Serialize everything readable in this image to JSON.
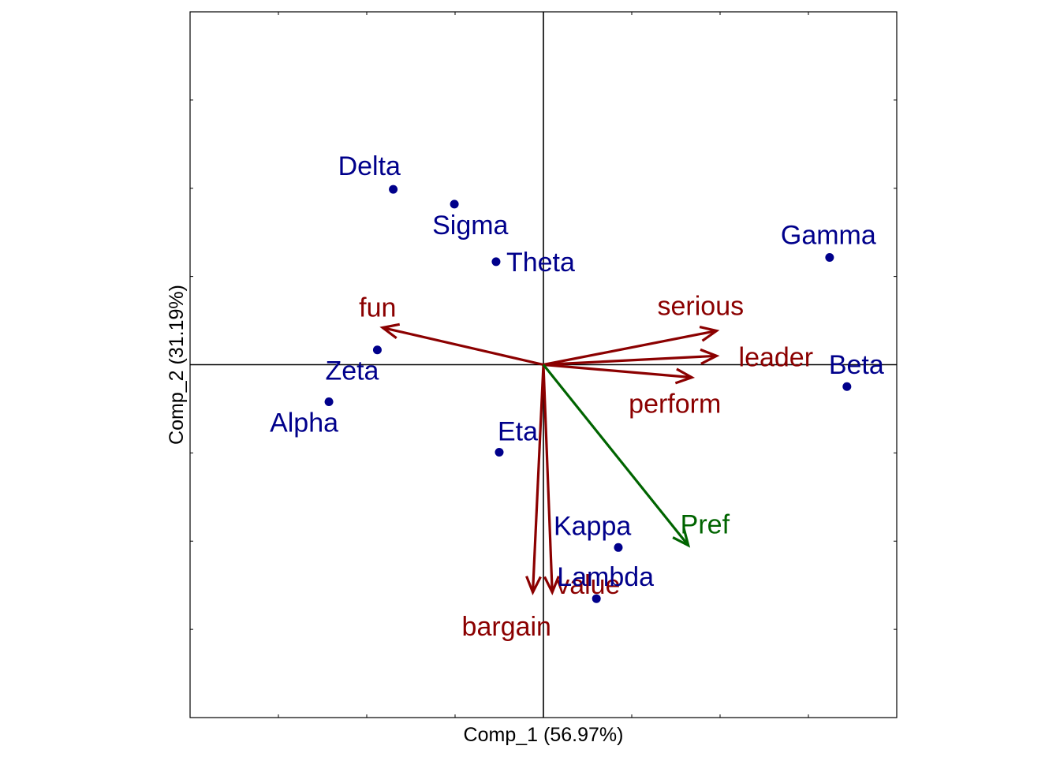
{
  "chart_data": {
    "type": "scatter",
    "subtype": "biplot",
    "xlabel": "Comp_1 (56.97%)",
    "ylabel": "Comp_2 (31.19%)",
    "xlim": [
      -1.0,
      1.0
    ],
    "ylim": [
      -1.0,
      1.0
    ],
    "grid": false,
    "colors": {
      "observations": "#00008B",
      "variables": "#8B0000",
      "supplementary": "#006400",
      "axes": "#000000"
    },
    "observations": [
      {
        "name": "Delta",
        "x": -0.425,
        "y": 0.497
      },
      {
        "name": "Sigma",
        "x": -0.252,
        "y": 0.455
      },
      {
        "name": "Theta",
        "x": -0.134,
        "y": 0.292
      },
      {
        "name": "Gamma",
        "x": 0.81,
        "y": 0.304
      },
      {
        "name": "Zeta",
        "x": -0.47,
        "y": 0.042
      },
      {
        "name": "Alpha",
        "x": -0.607,
        "y": -0.105
      },
      {
        "name": "Beta",
        "x": 0.859,
        "y": -0.062
      },
      {
        "name": "Eta",
        "x": -0.125,
        "y": -0.248
      },
      {
        "name": "Kappa",
        "x": 0.212,
        "y": -0.518
      },
      {
        "name": "Lambda",
        "x": 0.15,
        "y": -0.663
      }
    ],
    "variables": [
      {
        "name": "fun",
        "x": -0.455,
        "y": 0.105
      },
      {
        "name": "serious",
        "x": 0.49,
        "y": 0.096
      },
      {
        "name": "leader",
        "x": 0.49,
        "y": 0.025
      },
      {
        "name": "perform",
        "x": 0.42,
        "y": -0.036
      },
      {
        "name": "bargain",
        "x": -0.03,
        "y": -0.645
      },
      {
        "name": "value",
        "x": 0.025,
        "y": -0.645
      }
    ],
    "supplementary": [
      {
        "name": "Pref",
        "x": 0.41,
        "y": -0.512
      }
    ]
  }
}
